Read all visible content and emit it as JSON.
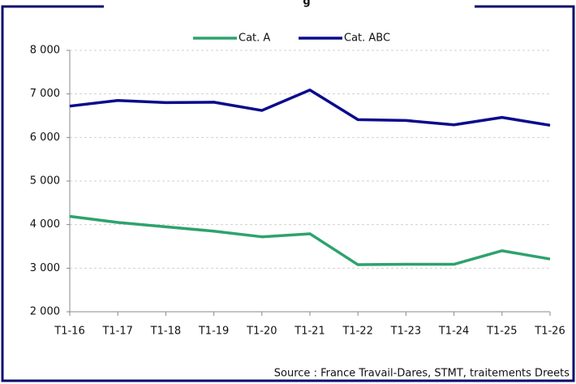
{
  "chart_data": {
    "type": "line",
    "title": "g",
    "categories": [
      "T1-16",
      "T1-17",
      "T1-18",
      "T1-19",
      "T1-20",
      "T1-21",
      "T1-22",
      "T1-23",
      "T1-24",
      "T1-25",
      "T1-26"
    ],
    "series": [
      {
        "name": "Cat. A",
        "color": "#2ea26e",
        "values": [
          4190,
          4050,
          3950,
          3850,
          3720,
          3790,
          3080,
          3090,
          3090,
          3400,
          3210
        ]
      },
      {
        "name": "Cat. ABC",
        "color": "#0b0b8c",
        "values": [
          6720,
          6850,
          6800,
          6810,
          6620,
          7090,
          6410,
          6390,
          6290,
          6460,
          6280
        ]
      }
    ],
    "ylim": [
      2000,
      8000
    ],
    "yticks": [
      {
        "value": 2000,
        "label": "2 000"
      },
      {
        "value": 3000,
        "label": "3 000"
      },
      {
        "value": 4000,
        "label": "4 000"
      },
      {
        "value": 5000,
        "label": "5 000"
      },
      {
        "value": 6000,
        "label": "6 000"
      },
      {
        "value": 7000,
        "label": "7 000"
      },
      {
        "value": 8000,
        "label": "8 000"
      }
    ],
    "grid": true,
    "legend": "top",
    "source": "Source : France Travail-Dares, STMT, traitements Dreets"
  }
}
